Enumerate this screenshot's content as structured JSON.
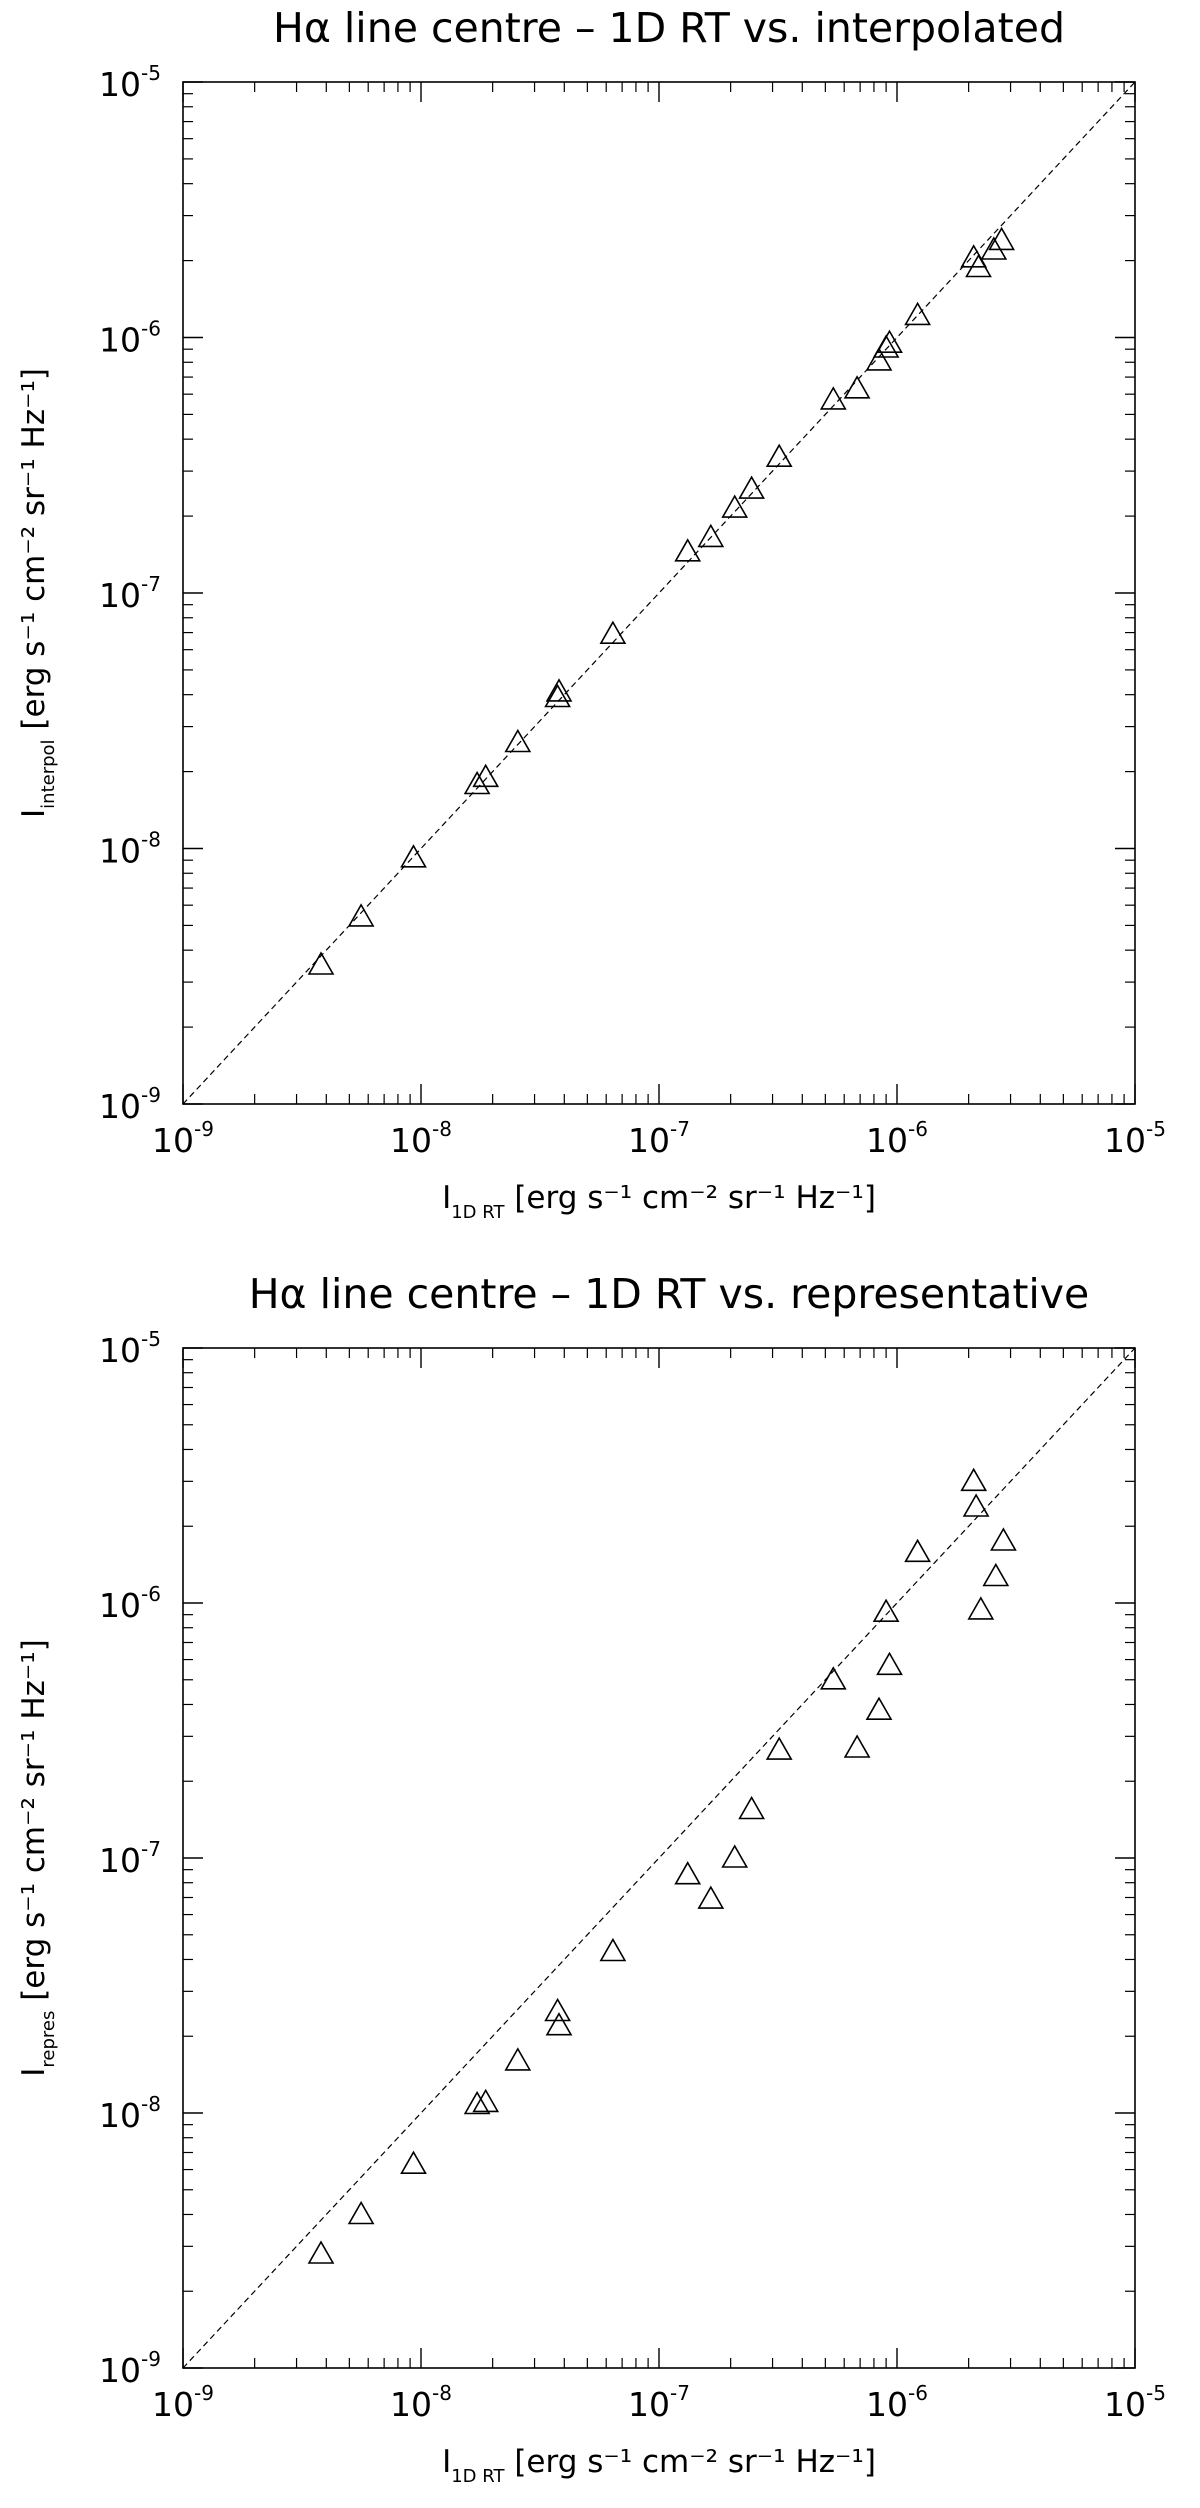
{
  "chart_data": [
    {
      "type": "scatter",
      "title": "Hα line centre – 1D RT vs. interpolated",
      "xlabel": {
        "symbol": "I",
        "sub": "1D RT",
        "unit": "[erg s⁻¹ cm⁻² sr⁻¹ Hz⁻¹]"
      },
      "ylabel": {
        "symbol": "I",
        "sub": "interpol",
        "unit": "[erg s⁻¹ cm⁻² sr⁻¹ Hz⁻¹]"
      },
      "xscale": "log",
      "yscale": "log",
      "xlim": [
        1e-09,
        1e-05
      ],
      "ylim": [
        1e-09,
        1e-05
      ],
      "xticks": [
        {
          "base": "10",
          "exp": "-9",
          "value": 1e-09
        },
        {
          "base": "10",
          "exp": "-8",
          "value": 1e-08
        },
        {
          "base": "10",
          "exp": "-7",
          "value": 1e-07
        },
        {
          "base": "10",
          "exp": "-6",
          "value": 1e-06
        },
        {
          "base": "10",
          "exp": "-5",
          "value": 1e-05
        }
      ],
      "yticks": [
        {
          "base": "10",
          "exp": "-9",
          "value": 1e-09
        },
        {
          "base": "10",
          "exp": "-8",
          "value": 1e-08
        },
        {
          "base": "10",
          "exp": "-7",
          "value": 1e-07
        },
        {
          "base": "10",
          "exp": "-6",
          "value": 1e-06
        },
        {
          "base": "10",
          "exp": "-5",
          "value": 1e-05
        }
      ],
      "marker": "triangle-open",
      "reference_line": "y = x (dashed)",
      "grid": false,
      "points": [
        {
          "x": 3.8e-09,
          "y": 3.5e-09
        },
        {
          "x": 5.6e-09,
          "y": 5.4e-09
        },
        {
          "x": 9.3e-09,
          "y": 9.2e-09
        },
        {
          "x": 1.72e-08,
          "y": 1.78e-08
        },
        {
          "x": 1.87e-08,
          "y": 1.9e-08
        },
        {
          "x": 2.55e-08,
          "y": 2.6e-08
        },
        {
          "x": 3.75e-08,
          "y": 3.9e-08
        },
        {
          "x": 3.8e-08,
          "y": 4.1e-08
        },
        {
          "x": 6.4e-08,
          "y": 6.9e-08
        },
        {
          "x": 1.32e-07,
          "y": 1.45e-07
        },
        {
          "x": 1.65e-07,
          "y": 1.65e-07
        },
        {
          "x": 2.08e-07,
          "y": 2.15e-07
        },
        {
          "x": 2.45e-07,
          "y": 2.55e-07
        },
        {
          "x": 3.2e-07,
          "y": 3.4e-07
        },
        {
          "x": 5.4e-07,
          "y": 5.7e-07
        },
        {
          "x": 6.8e-07,
          "y": 6.3e-07
        },
        {
          "x": 8.4e-07,
          "y": 8.1e-07
        },
        {
          "x": 9e-07,
          "y": 9.1e-07
        },
        {
          "x": 9.3e-07,
          "y": 9.5e-07
        },
        {
          "x": 1.22e-06,
          "y": 1.22e-06
        },
        {
          "x": 2.1e-06,
          "y": 2.05e-06
        },
        {
          "x": 2.2e-06,
          "y": 1.88e-06
        },
        {
          "x": 2.55e-06,
          "y": 2.2e-06
        },
        {
          "x": 2.75e-06,
          "y": 2.4e-06
        }
      ]
    },
    {
      "type": "scatter",
      "title": "Hα line centre – 1D RT vs. representative",
      "xlabel": {
        "symbol": "I",
        "sub": "1D RT",
        "unit": "[erg s⁻¹ cm⁻² sr⁻¹ Hz⁻¹]"
      },
      "ylabel": {
        "symbol": "I",
        "sub": "repres",
        "unit": "[erg s⁻¹ cm⁻² sr⁻¹ Hz⁻¹]"
      },
      "xscale": "log",
      "yscale": "log",
      "xlim": [
        1e-09,
        1e-05
      ],
      "ylim": [
        1e-09,
        1e-05
      ],
      "xticks": [
        {
          "base": "10",
          "exp": "-9",
          "value": 1e-09
        },
        {
          "base": "10",
          "exp": "-8",
          "value": 1e-08
        },
        {
          "base": "10",
          "exp": "-7",
          "value": 1e-07
        },
        {
          "base": "10",
          "exp": "-6",
          "value": 1e-06
        },
        {
          "base": "10",
          "exp": "-5",
          "value": 1e-05
        }
      ],
      "yticks": [
        {
          "base": "10",
          "exp": "-9",
          "value": 1e-09
        },
        {
          "base": "10",
          "exp": "-8",
          "value": 1e-08
        },
        {
          "base": "10",
          "exp": "-7",
          "value": 1e-07
        },
        {
          "base": "10",
          "exp": "-6",
          "value": 1e-06
        },
        {
          "base": "10",
          "exp": "-5",
          "value": 1e-05
        }
      ],
      "marker": "triangle-open",
      "reference_line": "y = x (dashed)",
      "grid": false,
      "points": [
        {
          "x": 3.8e-09,
          "y": 2.8e-09
        },
        {
          "x": 5.6e-09,
          "y": 4e-09
        },
        {
          "x": 9.3e-09,
          "y": 6.3e-09
        },
        {
          "x": 1.72e-08,
          "y": 1.08e-08
        },
        {
          "x": 1.87e-08,
          "y": 1.1e-08
        },
        {
          "x": 2.55e-08,
          "y": 1.6e-08
        },
        {
          "x": 3.75e-08,
          "y": 2.5e-08
        },
        {
          "x": 3.8e-08,
          "y": 2.2e-08
        },
        {
          "x": 6.4e-08,
          "y": 4.3e-08
        },
        {
          "x": 1.32e-07,
          "y": 8.6e-08
        },
        {
          "x": 1.65e-07,
          "y": 6.9e-08
        },
        {
          "x": 2.08e-07,
          "y": 1e-07
        },
        {
          "x": 2.45e-07,
          "y": 1.55e-07
        },
        {
          "x": 3.2e-07,
          "y": 2.65e-07
        },
        {
          "x": 5.4e-07,
          "y": 5e-07
        },
        {
          "x": 6.8e-07,
          "y": 2.7e-07
        },
        {
          "x": 8.4e-07,
          "y": 3.8e-07
        },
        {
          "x": 9e-07,
          "y": 9.2e-07
        },
        {
          "x": 9.3e-07,
          "y": 5.7e-07
        },
        {
          "x": 1.22e-06,
          "y": 1.58e-06
        },
        {
          "x": 2.1e-06,
          "y": 3e-06
        },
        {
          "x": 2.15e-06,
          "y": 2.38e-06
        },
        {
          "x": 2.25e-06,
          "y": 9.4e-07
        },
        {
          "x": 2.6e-06,
          "y": 1.27e-06
        },
        {
          "x": 2.8e-06,
          "y": 1.75e-06
        }
      ]
    }
  ]
}
